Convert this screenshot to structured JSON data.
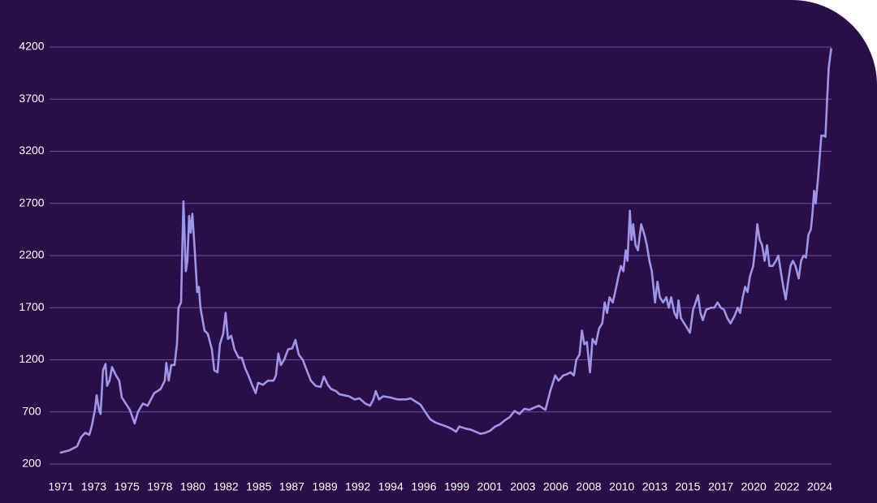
{
  "chart_data": {
    "type": "line",
    "color": "#9c97ea",
    "grid": true,
    "xlim": [
      1970.2,
      2025.5
    ],
    "ylim": [
      200,
      4200
    ],
    "yticks": [
      200,
      700,
      1200,
      1700,
      2200,
      2700,
      3200,
      3700,
      4200
    ],
    "xticks": [
      1971,
      {
        "value": 1973.33,
        "label": "1973"
      },
      {
        "value": 1975.67,
        "label": "1975"
      },
      {
        "value": 1978,
        "label": "1978"
      },
      {
        "value": 1980.33,
        "label": "1980"
      },
      {
        "value": 1982.67,
        "label": "1982"
      },
      {
        "value": 1985,
        "label": "1985"
      },
      {
        "value": 1987.33,
        "label": "1987"
      },
      {
        "value": 1989.67,
        "label": "1989"
      },
      {
        "value": 1992,
        "label": "1992"
      },
      {
        "value": 1994.33,
        "label": "1994"
      },
      {
        "value": 1996.67,
        "label": "1996"
      },
      {
        "value": 1999,
        "label": "1999"
      },
      {
        "value": 2001.33,
        "label": "2001"
      },
      {
        "value": 2003.67,
        "label": "2003"
      },
      {
        "value": 2006,
        "label": "2006"
      },
      {
        "value": 2008.33,
        "label": "2008"
      },
      {
        "value": 2010.67,
        "label": "2010"
      },
      {
        "value": 2013,
        "label": "2013"
      },
      {
        "value": 2015.33,
        "label": "2015"
      },
      {
        "value": 2017.67,
        "label": "2017"
      },
      {
        "value": 2020,
        "label": "2020"
      },
      {
        "value": 2022.33,
        "label": "2022"
      },
      {
        "value": 2024.67,
        "label": "2024"
      }
    ],
    "x": [
      1971.0,
      1971.57,
      1972.15,
      1972.44,
      1972.72,
      1973.01,
      1973.18,
      1973.41,
      1973.53,
      1973.7,
      1973.81,
      1973.98,
      1974.16,
      1974.27,
      1974.44,
      1974.62,
      1974.9,
      1975.13,
      1975.31,
      1975.59,
      1975.88,
      1976.22,
      1976.45,
      1976.8,
      1977.14,
      1977.6,
      1978.06,
      1978.35,
      1978.46,
      1978.63,
      1978.81,
      1979.04,
      1979.21,
      1979.32,
      1979.5,
      1979.67,
      1979.84,
      1979.95,
      1980.07,
      1980.18,
      1980.3,
      1980.47,
      1980.64,
      1980.76,
      1980.87,
      1981.16,
      1981.39,
      1981.68,
      1981.85,
      1982.08,
      1982.25,
      1982.48,
      1982.65,
      1982.82,
      1983.05,
      1983.28,
      1983.57,
      1983.8,
      1984.03,
      1984.26,
      1984.55,
      1984.78,
      1984.95,
      1985.29,
      1985.64,
      1986.04,
      1986.21,
      1986.38,
      1986.56,
      1986.79,
      1987.07,
      1987.36,
      1987.59,
      1987.82,
      1988.11,
      1988.33,
      1988.68,
      1989.02,
      1989.37,
      1989.6,
      1989.88,
      1990.11,
      1990.46,
      1990.69,
      1991.03,
      1991.38,
      1991.78,
      1992.12,
      1992.53,
      1992.87,
      1993.1,
      1993.27,
      1993.5,
      1993.79,
      1994.25,
      1994.82,
      1995.4,
      1995.74,
      1996.08,
      1996.43,
      1996.77,
      1997.12,
      1997.46,
      1997.86,
      1998.27,
      1998.61,
      1998.95,
      1999.18,
      1999.64,
      1999.99,
      2000.33,
      2000.68,
      2001.02,
      2001.36,
      2001.71,
      2002.05,
      2002.4,
      2002.74,
      2003.09,
      2003.43,
      2003.78,
      2004.12,
      2004.46,
      2004.81,
      2005.27,
      2005.61,
      2005.96,
      2006.19,
      2006.53,
      2006.76,
      2007.05,
      2007.28,
      2007.45,
      2007.68,
      2007.85,
      2008.02,
      2008.2,
      2008.42,
      2008.6,
      2008.83,
      2009.06,
      2009.29,
      2009.46,
      2009.63,
      2009.8,
      2010.03,
      2010.2,
      2010.43,
      2010.61,
      2010.78,
      2010.95,
      2011.07,
      2011.24,
      2011.35,
      2011.47,
      2011.64,
      2011.81,
      2012.04,
      2012.27,
      2012.44,
      2012.62,
      2012.79,
      2013.02,
      2013.19,
      2013.36,
      2013.59,
      2013.82,
      2013.99,
      2014.16,
      2014.39,
      2014.57,
      2014.68,
      2014.85,
      2015.08,
      2015.31,
      2015.49,
      2015.71,
      2015.89,
      2016.06,
      2016.23,
      2016.4,
      2016.63,
      2016.98,
      2017.21,
      2017.44,
      2017.67,
      2017.9,
      2018.13,
      2018.36,
      2018.64,
      2018.87,
      2019.04,
      2019.22,
      2019.39,
      2019.56,
      2019.73,
      2019.96,
      2020.13,
      2020.25,
      2020.42,
      2020.59,
      2020.77,
      2020.94,
      2021.11,
      2021.34,
      2021.57,
      2021.74,
      2021.91,
      2022.09,
      2022.26,
      2022.43,
      2022.6,
      2022.77,
      2022.95,
      2023.18,
      2023.35,
      2023.52,
      2023.69,
      2023.87,
      2024.04,
      2024.15,
      2024.27,
      2024.38,
      2024.55,
      2024.78,
      2024.96,
      2025.07,
      2025.19,
      2025.3,
      2025.47
    ],
    "values": [
      310,
      330,
      370,
      460,
      500,
      480,
      560,
      720,
      860,
      720,
      680,
      1100,
      1160,
      950,
      1000,
      1130,
      1050,
      1000,
      840,
      780,
      720,
      590,
      700,
      780,
      760,
      880,
      920,
      1000,
      1170,
      1000,
      1150,
      1150,
      1350,
      1700,
      1750,
      2720,
      2050,
      2150,
      2580,
      2420,
      2600,
      2250,
      1850,
      1900,
      1700,
      1480,
      1450,
      1300,
      1100,
      1080,
      1350,
      1450,
      1650,
      1400,
      1430,
      1300,
      1220,
      1220,
      1120,
      1050,
      950,
      880,
      980,
      960,
      1000,
      1000,
      1050,
      1260,
      1150,
      1200,
      1300,
      1310,
      1390,
      1250,
      1200,
      1120,
      1000,
      950,
      940,
      1040,
      960,
      920,
      900,
      870,
      860,
      850,
      820,
      830,
      780,
      760,
      820,
      900,
      820,
      850,
      840,
      820,
      820,
      830,
      800,
      770,
      700,
      630,
      600,
      580,
      560,
      540,
      510,
      560,
      540,
      530,
      510,
      490,
      500,
      520,
      560,
      580,
      620,
      650,
      710,
      680,
      730,
      720,
      740,
      760,
      720,
      900,
      1050,
      1000,
      1050,
      1060,
      1080,
      1050,
      1200,
      1250,
      1480,
      1350,
      1370,
      1080,
      1400,
      1350,
      1500,
      1550,
      1750,
      1650,
      1800,
      1750,
      1850,
      2000,
      2100,
      2050,
      2250,
      2150,
      2630,
      2350,
      2500,
      2300,
      2250,
      2500,
      2400,
      2300,
      2150,
      2050,
      1750,
      1950,
      1800,
      1750,
      1800,
      1700,
      1800,
      1650,
      1600,
      1770,
      1600,
      1550,
      1500,
      1460,
      1680,
      1750,
      1820,
      1650,
      1580,
      1680,
      1700,
      1700,
      1750,
      1700,
      1680,
      1600,
      1550,
      1620,
      1700,
      1650,
      1800,
      1900,
      1850,
      2000,
      2100,
      2300,
      2500,
      2350,
      2300,
      2150,
      2300,
      2100,
      2100,
      2150,
      2200,
      2050,
      1900,
      1780,
      1950,
      2100,
      2150,
      2100,
      1980,
      2150,
      2200,
      2180,
      2400,
      2450,
      2600,
      2820,
      2700,
      2950,
      3350,
      3350,
      3340,
      3700,
      4000,
      4180
    ]
  }
}
